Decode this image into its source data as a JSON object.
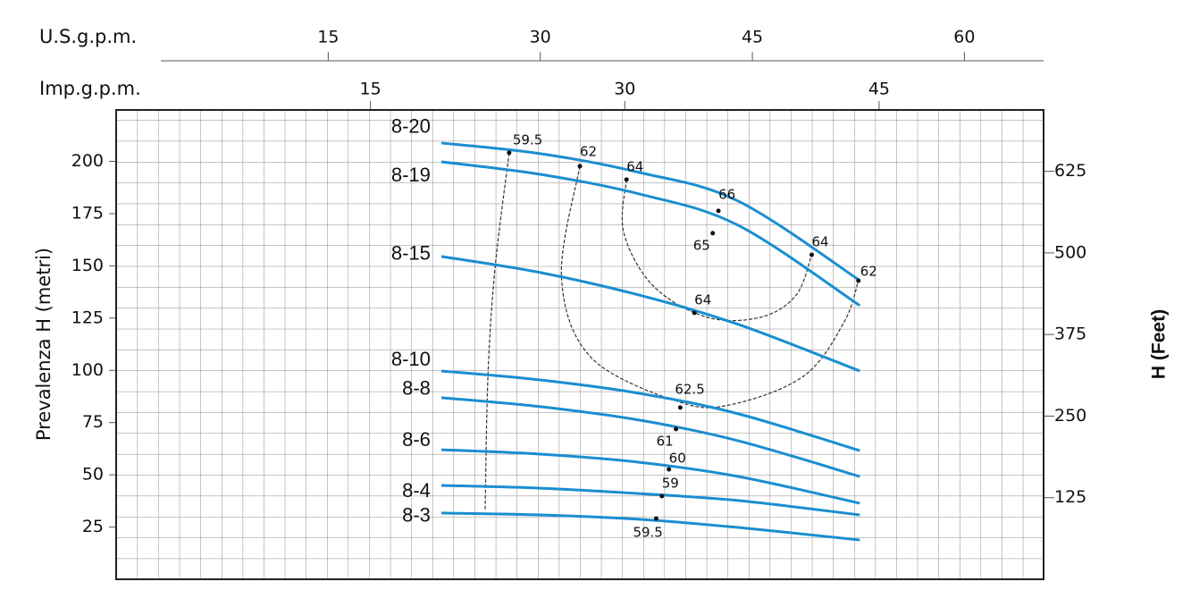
{
  "chart_data": {
    "type": "line",
    "xlabel": "U.S.g.p.m.",
    "x2label": "Imp.g.p.m.",
    "ylabel": "Prevalenza H (metri)",
    "y2label": "H (Feet)",
    "xlim": [
      0,
      65.6
    ],
    "xticks": [
      15,
      30,
      45,
      60
    ],
    "x2lim": [
      0,
      54.7
    ],
    "x2ticks": [
      15,
      30,
      45
    ],
    "ylim": [
      0,
      224.6
    ],
    "yticks": [
      25,
      50,
      75,
      100,
      125,
      150,
      175,
      200
    ],
    "y2lim": [
      0,
      719
    ],
    "y2ticks": [
      125,
      250,
      375,
      500,
      625
    ],
    "grid": true,
    "x": [
      23,
      30,
      37,
      44,
      52.6
    ],
    "series": [
      {
        "name": "8-20",
        "color": "#1a8ed0",
        "values": [
          208.8,
          203.7,
          194.7,
          181,
          143
        ]
      },
      {
        "name": "8-19",
        "color": "#1a8ed0",
        "values": [
          199.8,
          193.8,
          184.4,
          169.4,
          131
        ]
      },
      {
        "name": "8-15",
        "color": "#1a8ed0",
        "values": [
          154.5,
          146.8,
          136,
          122,
          99.7
        ]
      },
      {
        "name": "8-10",
        "color": "#1a8ed0",
        "values": [
          99.7,
          95.4,
          89,
          79.2,
          61.6
        ]
      },
      {
        "name": "8-8",
        "color": "#1a8ed0",
        "values": [
          86.9,
          82.6,
          76.2,
          66.3,
          49.2
        ]
      },
      {
        "name": "8-6",
        "color": "#1a8ed0",
        "values": [
          62,
          59.9,
          56,
          49.2,
          36.4
        ]
      },
      {
        "name": "8-4",
        "color": "#1a8ed0",
        "values": [
          44.9,
          43.6,
          41,
          37.7,
          30.8
        ]
      },
      {
        "name": "8-3",
        "color": "#1a8ed0",
        "values": [
          31.7,
          30.8,
          28.7,
          24.8,
          18.8
        ]
      }
    ],
    "iso_lines": [
      {
        "x": [
          27.8,
          26.8,
          26.3,
          26.1
        ],
        "values": [
          204.1,
          148.9,
          97.6,
          33.4
        ]
      },
      {
        "x": [
          32.8,
          31.5,
          33.6,
          39.9,
          43.7,
          48.7,
          51.5,
          52.5
        ],
        "values": [
          197.7,
          144.6,
          106.1,
          84.7,
          83.9,
          97.6,
          123.2,
          142.9
        ]
      },
      {
        "x": [
          36.1,
          35.9,
          38,
          41.8,
          45.6,
          48.1,
          49.2
        ],
        "values": [
          191.3,
          166,
          140.3,
          125.4,
          125.4,
          136,
          155.3
        ]
      }
    ],
    "annotations": [
      {
        "text": "59.5",
        "x": 27.8,
        "y": 204.1
      },
      {
        "text": "62",
        "x": 32.8,
        "y": 197.7
      },
      {
        "text": "64",
        "x": 36.1,
        "y": 191.3
      },
      {
        "text": "66",
        "x": 42.6,
        "y": 176.3
      },
      {
        "text": "65",
        "x": 42.2,
        "y": 165.6
      },
      {
        "text": "64",
        "x": 49.2,
        "y": 155.3
      },
      {
        "text": "62",
        "x": 52.5,
        "y": 142.9
      },
      {
        "text": "64",
        "x": 40.9,
        "y": 127.5
      },
      {
        "text": "62.5",
        "x": 39.9,
        "y": 82.2
      },
      {
        "text": "61",
        "x": 39.6,
        "y": 71.9
      },
      {
        "text": "60",
        "x": 39.1,
        "y": 52.6
      },
      {
        "text": "59",
        "x": 38.6,
        "y": 39.8
      },
      {
        "text": "59.5",
        "x": 38.2,
        "y": 29.1
      }
    ]
  }
}
